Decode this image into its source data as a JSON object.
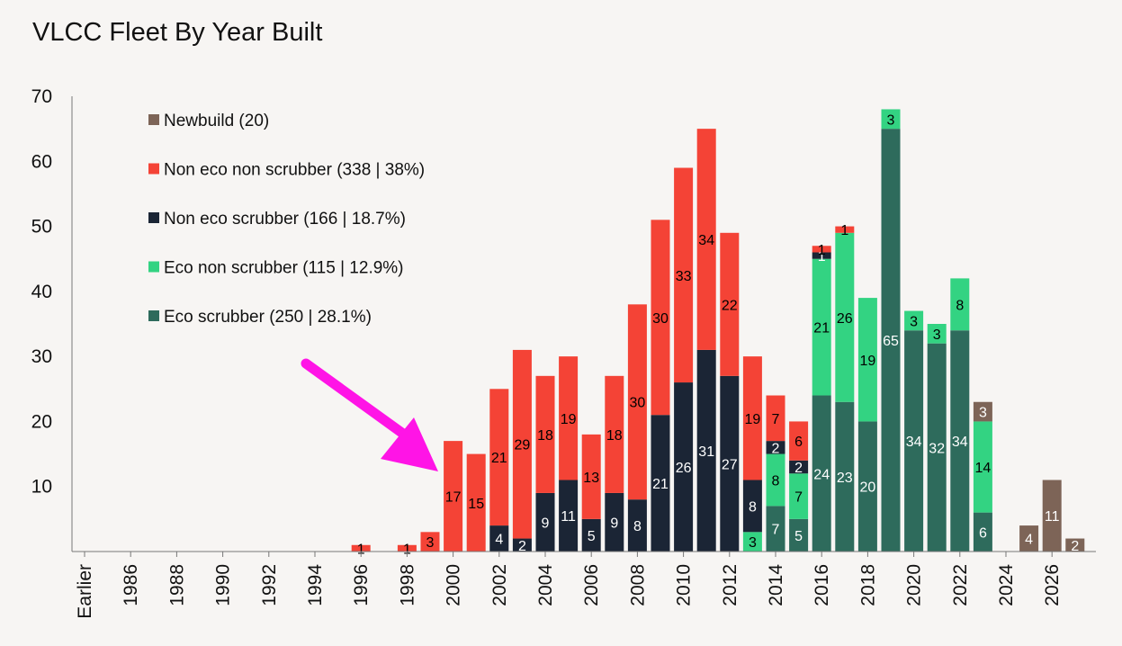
{
  "chart_data": {
    "type": "bar",
    "stacked": true,
    "title": "VLCC Fleet By Year Built",
    "xlabel": "",
    "ylabel": "",
    "ylim": [
      0,
      70
    ],
    "yticks": [
      10,
      20,
      30,
      40,
      50,
      60,
      70
    ],
    "grid": false,
    "legend_position": "top-left",
    "categories": [
      "Earlier",
      "1985",
      "1986",
      "1987",
      "1988",
      "1989",
      "1990",
      "1991",
      "1992",
      "1993",
      "1994",
      "1995",
      "1996",
      "1997",
      "1998",
      "1999",
      "2000",
      "2001",
      "2002",
      "2003",
      "2004",
      "2005",
      "2006",
      "2007",
      "2008",
      "2009",
      "2010",
      "2011",
      "2012",
      "2013",
      "2014",
      "2015",
      "2016",
      "2017",
      "2018",
      "2019",
      "2020",
      "2021",
      "2022",
      "2023",
      "2024",
      "2025",
      "2026",
      "2027"
    ],
    "x_tick_labels": [
      "Earlier",
      "1986",
      "1988",
      "1990",
      "1992",
      "1994",
      "1996",
      "1998",
      "2000",
      "2002",
      "2004",
      "2006",
      "2008",
      "2010",
      "2012",
      "2014",
      "2016",
      "2018",
      "2020",
      "2022",
      "2024",
      "2026"
    ],
    "series": [
      {
        "name": "Eco scrubber (250 | 28.1%)",
        "color": "#2e6b5c",
        "label_color": "#ffffff",
        "values": [
          0,
          0,
          0,
          0,
          0,
          0,
          0,
          0,
          0,
          0,
          0,
          0,
          0,
          0,
          0,
          0,
          0,
          0,
          0,
          0,
          0,
          0,
          0,
          0,
          0,
          0,
          0,
          0,
          0,
          0,
          7,
          5,
          24,
          23,
          20,
          65,
          34,
          32,
          34,
          6,
          0,
          0,
          0,
          0
        ]
      },
      {
        "name": "Eco non scrubber (115 | 12.9%)",
        "color": "#33d382",
        "label_color": "#000000",
        "values": [
          0,
          0,
          0,
          0,
          0,
          0,
          0,
          0,
          0,
          0,
          0,
          0,
          0,
          0,
          0,
          0,
          0,
          0,
          0,
          0,
          0,
          0,
          0,
          0,
          0,
          0,
          0,
          0,
          0,
          3,
          8,
          7,
          21,
          26,
          19,
          3,
          3,
          3,
          8,
          14,
          0,
          0,
          0,
          0
        ]
      },
      {
        "name": "Non eco scrubber (166 | 18.7%)",
        "color": "#1b2535",
        "label_color": "#ffffff",
        "values": [
          0,
          0,
          0,
          0,
          0,
          0,
          0,
          0,
          0,
          0,
          0,
          0,
          0,
          0,
          0,
          0,
          0,
          0,
          4,
          2,
          9,
          11,
          5,
          9,
          8,
          21,
          26,
          31,
          27,
          8,
          2,
          2,
          1,
          0,
          0,
          0,
          0,
          0,
          0,
          0,
          0,
          0,
          0,
          0
        ]
      },
      {
        "name": "Non eco non scrubber (338 | 38%)",
        "color": "#f44336",
        "label_color": "#000000",
        "values": [
          0,
          0,
          0,
          0,
          0,
          0,
          0,
          0,
          0,
          0,
          0,
          0,
          1,
          0,
          1,
          3,
          17,
          15,
          21,
          29,
          18,
          19,
          13,
          18,
          30,
          30,
          33,
          34,
          22,
          19,
          7,
          6,
          1,
          1,
          0,
          0,
          0,
          0,
          0,
          0,
          0,
          0,
          0,
          0
        ]
      },
      {
        "name": "Newbuild (20)",
        "color": "#7d6457",
        "label_color": "#ffffff",
        "values": [
          0,
          0,
          0,
          0,
          0,
          0,
          0,
          0,
          0,
          0,
          0,
          0,
          0,
          0,
          0,
          0,
          0,
          0,
          0,
          0,
          0,
          0,
          0,
          0,
          0,
          0,
          0,
          0,
          0,
          0,
          0,
          0,
          0,
          0,
          0,
          0,
          0,
          0,
          0,
          3,
          0,
          4,
          11,
          2
        ]
      }
    ],
    "legend_order": [
      "Newbuild (20)",
      "Non eco non scrubber (338 | 38%)",
      "Non eco scrubber (166 | 18.7%)",
      "Eco non scrubber (115 | 12.9%)",
      "Eco scrubber (250 | 28.1%)"
    ],
    "annotation": {
      "type": "arrow",
      "color": "#ff14e6",
      "points_to": "2000"
    }
  }
}
